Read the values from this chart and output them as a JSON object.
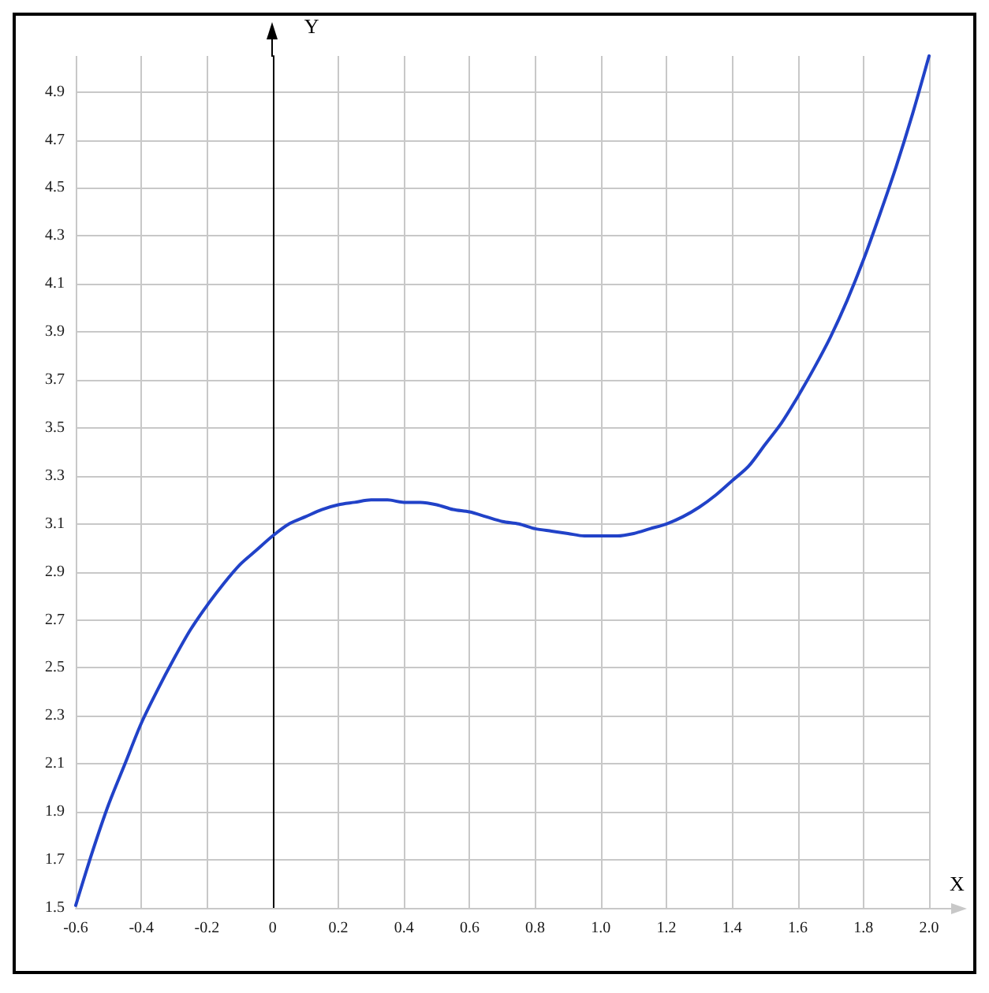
{
  "chart_data": {
    "type": "line",
    "xlabel": "X",
    "ylabel": "Y",
    "x": [
      -0.6,
      -0.55,
      -0.5,
      -0.45,
      -0.4,
      -0.35,
      -0.3,
      -0.25,
      -0.2,
      -0.15,
      -0.1,
      -0.05,
      0,
      0.05,
      0.1,
      0.15,
      0.2,
      0.25,
      0.3,
      0.35,
      0.4,
      0.45,
      0.5,
      0.55,
      0.6,
      0.65,
      0.7,
      0.75,
      0.8,
      0.85,
      0.9,
      0.95,
      1,
      1.05,
      1.1,
      1.15,
      1.2,
      1.25,
      1.3,
      1.35,
      1.4,
      1.45,
      1.5,
      1.55,
      1.6,
      1.65,
      1.7,
      1.75,
      1.8,
      1.85,
      1.9,
      1.95,
      2
    ],
    "series": [
      {
        "color": "#2142c8",
        "values": [
          1.51,
          1.73,
          1.93,
          2.1,
          2.27,
          2.41,
          2.54,
          2.66,
          2.76,
          2.85,
          2.93,
          2.99,
          3.05,
          3.1,
          3.13,
          3.16,
          3.18,
          3.19,
          3.2,
          3.2,
          3.19,
          3.19,
          3.18,
          3.16,
          3.15,
          3.13,
          3.11,
          3.1,
          3.08,
          3.07,
          3.06,
          3.05,
          3.05,
          3.05,
          3.06,
          3.08,
          3.1,
          3.13,
          3.17,
          3.22,
          3.28,
          3.34,
          3.43,
          3.52,
          3.63,
          3.75,
          3.88,
          4.03,
          4.2,
          4.39,
          4.59,
          4.81,
          5.05
        ]
      }
    ],
    "xlim": [
      -0.6,
      2.0
    ],
    "xticks": [
      -0.6,
      -0.4,
      -0.2,
      0,
      0.2,
      0.4,
      0.6,
      0.8,
      {
        "value": 1,
        "label": "1.0"
      },
      1.2,
      1.4,
      1.6,
      1.8,
      {
        "value": 2,
        "label": "2.0"
      }
    ],
    "ylim": [
      1.5,
      5.05
    ],
    "yticks": [
      1.5,
      1.7,
      1.9,
      2.1,
      2.3,
      2.5,
      2.7,
      2.9,
      3.1,
      3.3,
      3.5,
      3.7,
      3.9,
      4.1,
      4.3,
      4.5,
      4.7,
      4.9
    ],
    "grid": true,
    "marker": "none"
  }
}
